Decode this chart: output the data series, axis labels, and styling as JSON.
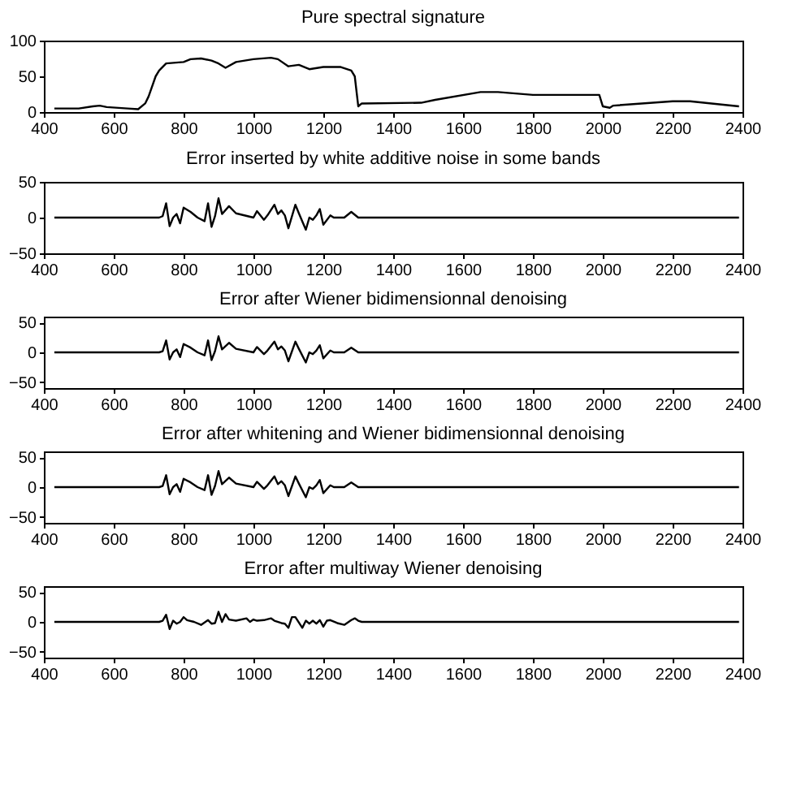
{
  "chart_data": [
    {
      "type": "line",
      "title": "Pure spectral signature",
      "xlim": [
        400,
        2400
      ],
      "xticks": [
        400,
        600,
        800,
        1000,
        1200,
        1400,
        1600,
        1800,
        2000,
        2200,
        2400
      ],
      "ylim": [
        0,
        100
      ],
      "yticks": [
        0,
        50,
        100
      ],
      "grid": false,
      "series": [
        {
          "color": "#000000",
          "x": [
            430,
            500,
            540,
            560,
            580,
            640,
            670,
            690,
            700,
            720,
            730,
            750,
            800,
            820,
            850,
            880,
            900,
            920,
            950,
            1000,
            1050,
            1070,
            1100,
            1130,
            1160,
            1200,
            1250,
            1280,
            1290,
            1300,
            1310,
            1480,
            1520,
            1650,
            1700,
            1800,
            1990,
            2000,
            2020,
            2030,
            2200,
            2250,
            2390
          ],
          "values": [
            5,
            5,
            8,
            9,
            7,
            5,
            4,
            12,
            22,
            50,
            58,
            68,
            70,
            74,
            75,
            72,
            68,
            62,
            70,
            74,
            76,
            74,
            64,
            66,
            60,
            63,
            63,
            58,
            50,
            8,
            12,
            13,
            17,
            28,
            28,
            24,
            24,
            8,
            6,
            9,
            15,
            15,
            8
          ]
        }
      ]
    },
    {
      "type": "line",
      "title": "Error inserted by white additive noise in some bands",
      "xlim": [
        400,
        2400
      ],
      "xticks": [
        400,
        600,
        800,
        1000,
        1200,
        1400,
        1600,
        1800,
        2000,
        2200,
        2400
      ],
      "ylim": [
        -50,
        50
      ],
      "yticks": [
        -50,
        0,
        50
      ],
      "grid": false,
      "series": [
        {
          "color": "#000000",
          "x": [
            430,
            730,
            740,
            750,
            760,
            770,
            780,
            790,
            800,
            820,
            840,
            860,
            870,
            880,
            890,
            900,
            910,
            930,
            950,
            1000,
            1010,
            1030,
            1040,
            1060,
            1070,
            1080,
            1090,
            1100,
            1120,
            1130,
            1150,
            1160,
            1170,
            1180,
            1190,
            1200,
            1220,
            1230,
            1260,
            1280,
            1300,
            2390
          ],
          "values": [
            0,
            0,
            2,
            20,
            -12,
            0,
            5,
            -8,
            14,
            8,
            0,
            -5,
            20,
            -13,
            2,
            27,
            5,
            16,
            6,
            0,
            9,
            -3,
            3,
            18,
            5,
            10,
            3,
            -15,
            18,
            6,
            -17,
            0,
            -3,
            3,
            12,
            -10,
            3,
            0,
            0,
            8,
            0,
            0
          ]
        }
      ]
    },
    {
      "type": "line",
      "title": "Error after Wiener bidimensionnal denoising",
      "xlim": [
        400,
        2400
      ],
      "xticks": [
        400,
        600,
        800,
        1000,
        1200,
        1400,
        1600,
        1800,
        2000,
        2200,
        2400
      ],
      "ylim": [
        -60,
        60
      ],
      "yticks": [
        -50,
        0,
        50
      ],
      "grid": false,
      "series": [
        {
          "color": "#000000",
          "x": [
            430,
            730,
            740,
            750,
            760,
            770,
            780,
            790,
            800,
            820,
            840,
            860,
            870,
            880,
            890,
            900,
            910,
            930,
            950,
            1000,
            1010,
            1030,
            1040,
            1060,
            1070,
            1080,
            1090,
            1100,
            1120,
            1130,
            1150,
            1160,
            1170,
            1180,
            1190,
            1200,
            1220,
            1230,
            1260,
            1280,
            1300,
            2390
          ],
          "values": [
            0,
            0,
            2,
            20,
            -12,
            0,
            5,
            -8,
            14,
            8,
            0,
            -5,
            20,
            -13,
            2,
            27,
            5,
            16,
            6,
            0,
            9,
            -3,
            3,
            18,
            5,
            10,
            3,
            -15,
            18,
            6,
            -17,
            0,
            -3,
            3,
            12,
            -10,
            3,
            0,
            0,
            8,
            0,
            0
          ]
        }
      ]
    },
    {
      "type": "line",
      "title": "Error after whitening and Wiener bidimensionnal denoising",
      "xlim": [
        400,
        2400
      ],
      "xticks": [
        400,
        600,
        800,
        1000,
        1200,
        1400,
        1600,
        1800,
        2000,
        2200,
        2400
      ],
      "ylim": [
        -60,
        60
      ],
      "yticks": [
        -50,
        0,
        50
      ],
      "grid": false,
      "series": [
        {
          "color": "#000000",
          "x": [
            430,
            730,
            740,
            750,
            760,
            770,
            780,
            790,
            800,
            820,
            840,
            860,
            870,
            880,
            890,
            900,
            910,
            930,
            950,
            1000,
            1010,
            1030,
            1040,
            1060,
            1070,
            1080,
            1090,
            1100,
            1120,
            1130,
            1150,
            1160,
            1170,
            1180,
            1190,
            1200,
            1220,
            1230,
            1260,
            1280,
            1300,
            2390
          ],
          "values": [
            0,
            0,
            2,
            20,
            -12,
            0,
            5,
            -8,
            14,
            8,
            0,
            -5,
            20,
            -13,
            2,
            27,
            5,
            16,
            6,
            0,
            9,
            -3,
            3,
            18,
            5,
            10,
            3,
            -15,
            18,
            6,
            -17,
            0,
            -3,
            3,
            12,
            -10,
            3,
            0,
            0,
            8,
            0,
            0
          ]
        }
      ]
    },
    {
      "type": "line",
      "title": "Error after multiway Wiener denoising",
      "xlim": [
        400,
        2400
      ],
      "xticks": [
        400,
        600,
        800,
        1000,
        1200,
        1400,
        1600,
        1800,
        2000,
        2200,
        2400
      ],
      "ylim": [
        -60,
        60
      ],
      "yticks": [
        -50,
        0,
        50
      ],
      "grid": false,
      "series": [
        {
          "color": "#000000",
          "x": [
            430,
            730,
            740,
            750,
            760,
            770,
            780,
            790,
            800,
            810,
            830,
            850,
            870,
            880,
            890,
            900,
            910,
            920,
            930,
            950,
            980,
            990,
            1000,
            1010,
            1030,
            1050,
            1060,
            1080,
            1090,
            1100,
            1110,
            1120,
            1140,
            1150,
            1160,
            1170,
            1180,
            1190,
            1200,
            1210,
            1220,
            1240,
            1260,
            1280,
            1290,
            1300,
            1310,
            2390
          ],
          "values": [
            0,
            0,
            2,
            12,
            -12,
            2,
            -3,
            0,
            8,
            3,
            0,
            -5,
            3,
            -3,
            -2,
            17,
            0,
            13,
            4,
            2,
            6,
            0,
            4,
            2,
            3,
            6,
            2,
            -2,
            -3,
            -10,
            8,
            8,
            -10,
            2,
            -3,
            2,
            -3,
            3,
            -8,
            2,
            3,
            -2,
            -5,
            3,
            6,
            2,
            0,
            0
          ]
        }
      ]
    }
  ]
}
